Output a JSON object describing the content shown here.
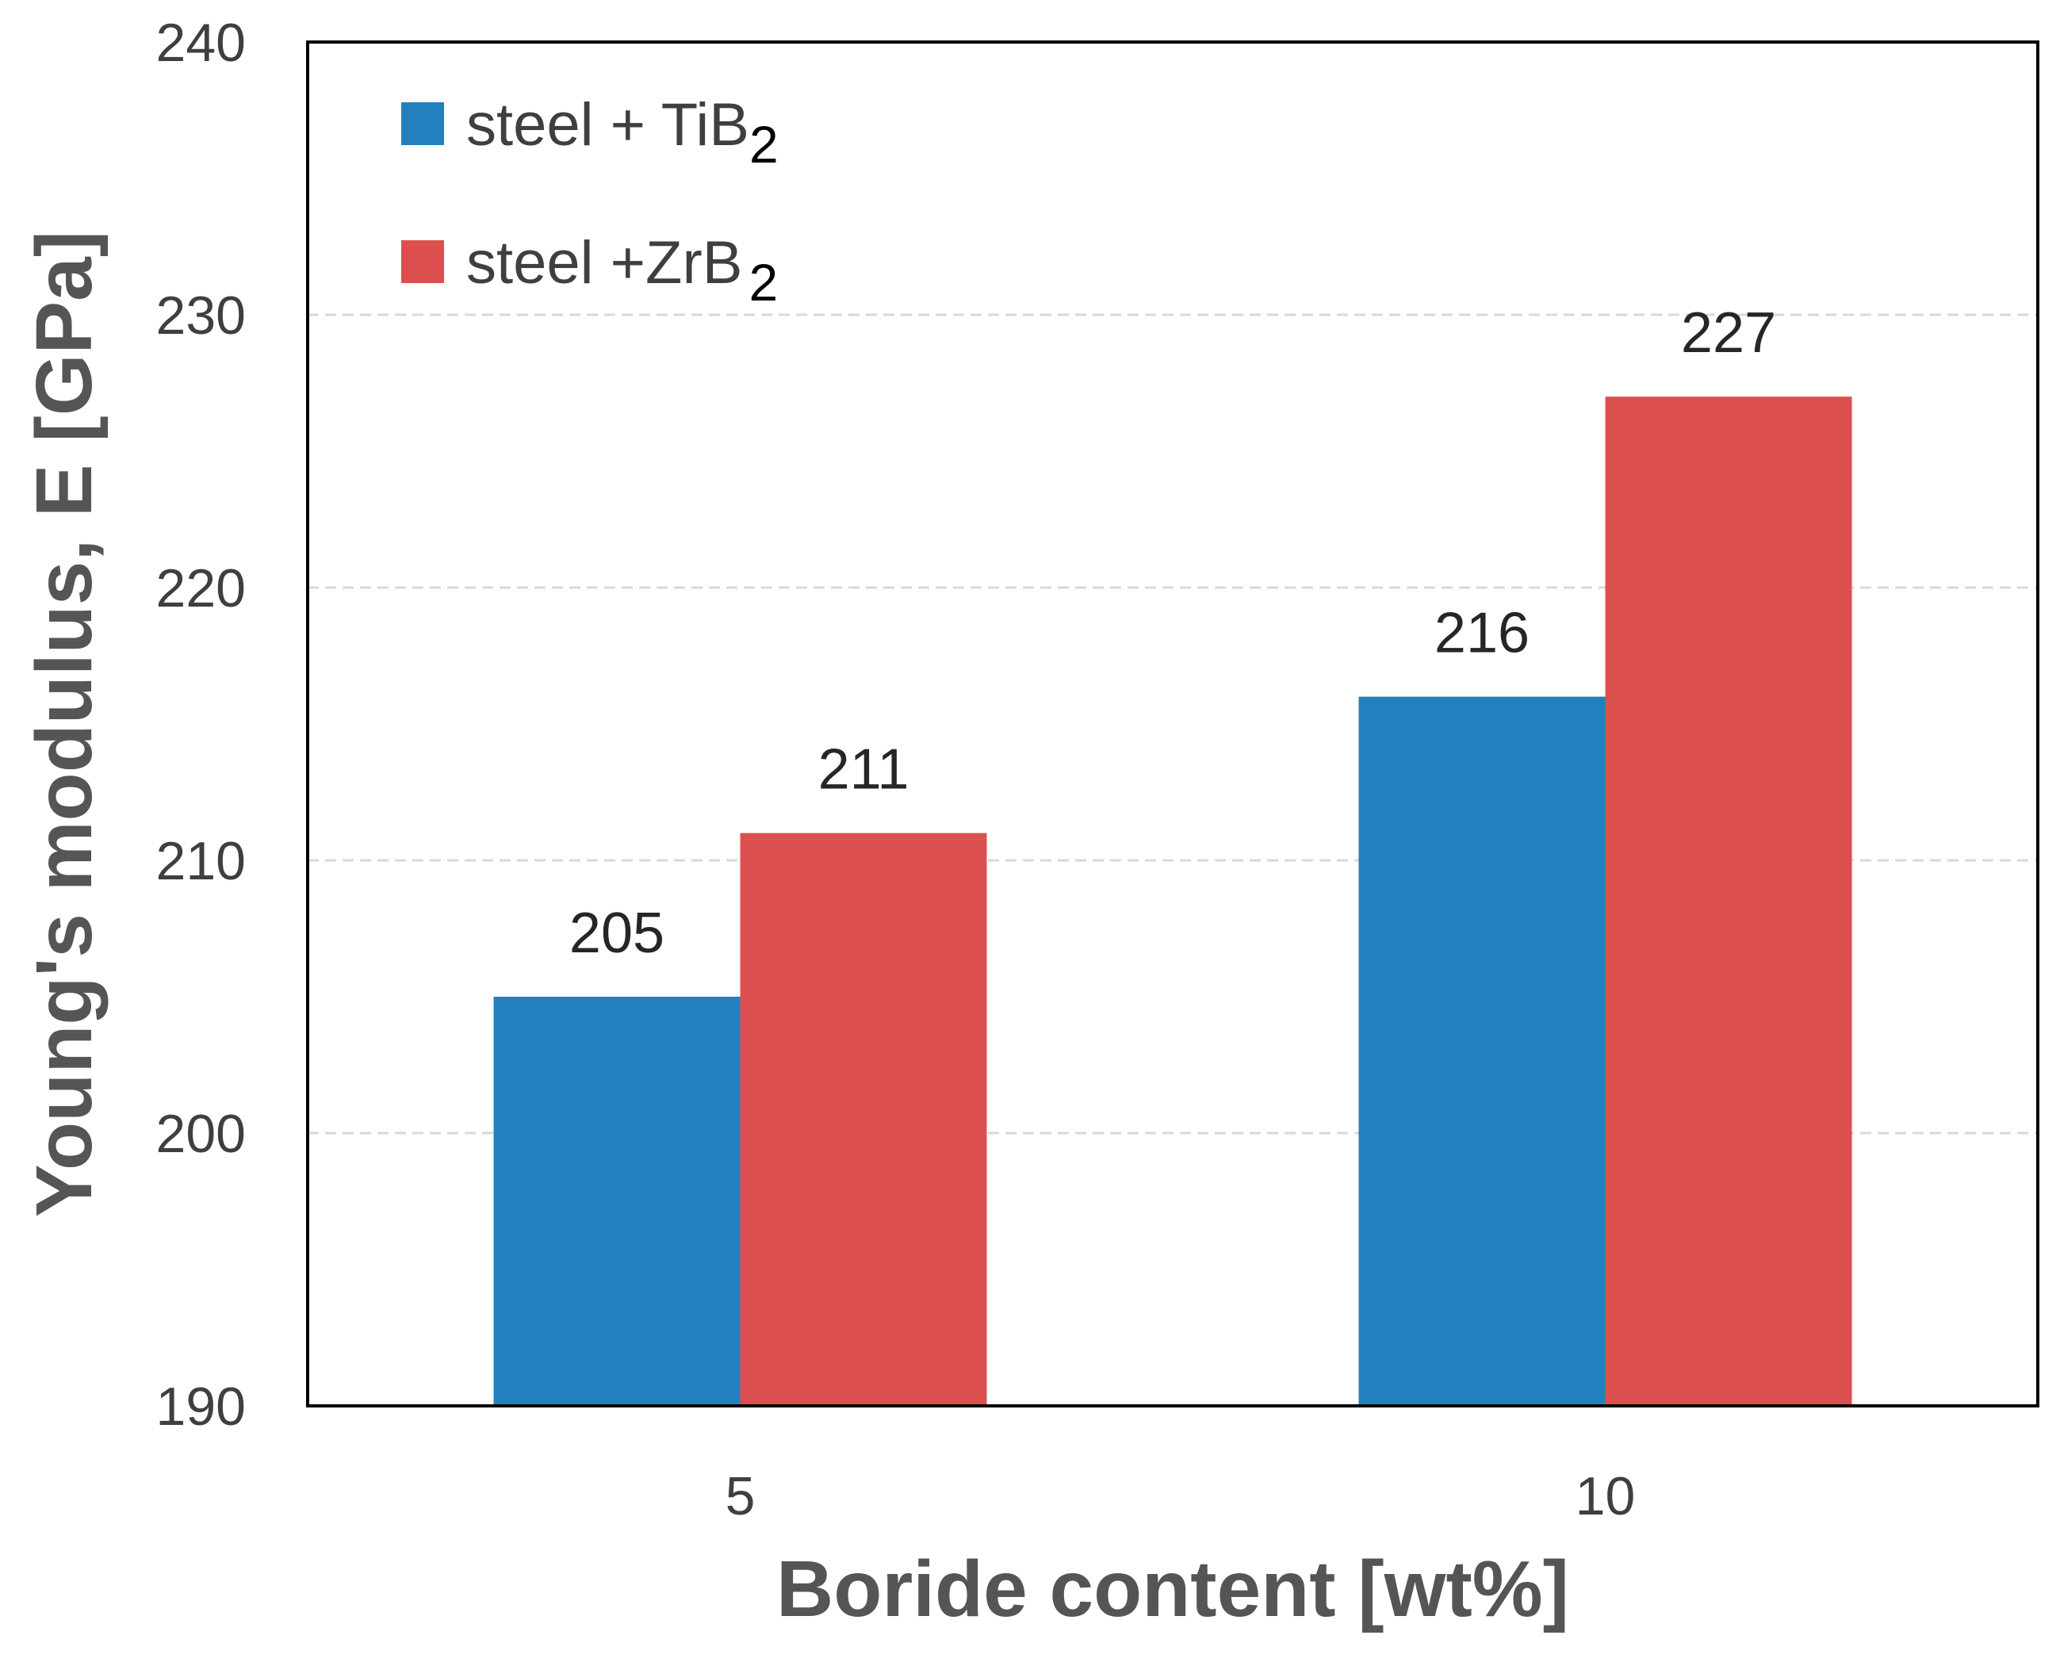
{
  "chart_data": {
    "type": "bar",
    "title": "",
    "xlabel": "Boride content [wt%]",
    "ylabel": "Young's modulus, E  [GPa]",
    "categories": [
      "5",
      "10"
    ],
    "ylim": [
      190,
      240
    ],
    "yticks": [
      190,
      200,
      210,
      220,
      230,
      240
    ],
    "ytick_labels": [
      "190",
      "200",
      "210",
      "220",
      "230",
      "240"
    ],
    "grid": "horizontal dashed",
    "legend_position": "top-left",
    "series": [
      {
        "name": "steel + TiB",
        "name_subscript": "2",
        "color": "#2380bf",
        "values": [
          205,
          216
        ],
        "data_labels": [
          "205",
          "216"
        ]
      },
      {
        "name": "steel +ZrB",
        "name_subscript": "2",
        "color": "#db504e",
        "values": [
          211,
          227
        ],
        "data_labels": [
          "211",
          "227"
        ]
      }
    ]
  }
}
